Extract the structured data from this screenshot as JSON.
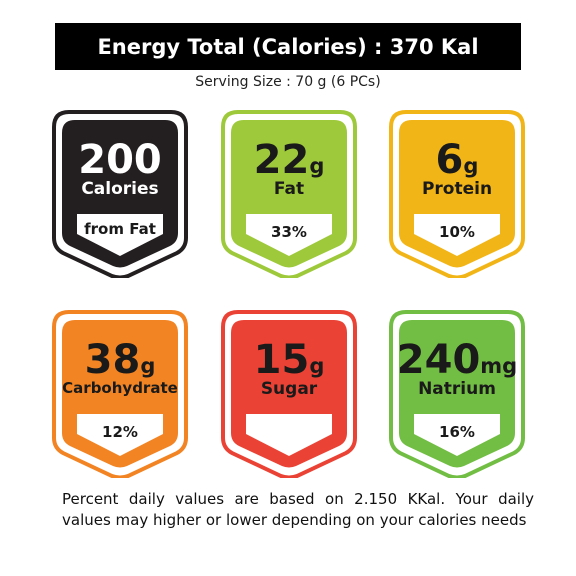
{
  "header": {
    "title": "Energy Total (Calories) : 370 Kal",
    "serving": "Serving Size : 70 g (6 PCs)"
  },
  "badges": [
    {
      "value": "200",
      "unit": "",
      "label": "Calories",
      "pct": "from Fat",
      "color": "#231f20",
      "text_color": "#ffffff"
    },
    {
      "value": "22",
      "unit": "g",
      "label": "Fat",
      "pct": "33%",
      "color": "#9dc93b",
      "text_color": "#1a1a1a"
    },
    {
      "value": "6",
      "unit": "g",
      "label": "Protein",
      "pct": "10%",
      "color": "#f2b518",
      "text_color": "#1a1a1a"
    },
    {
      "value": "38",
      "unit": "g",
      "label": "Carbohydrate",
      "pct": "12%",
      "color": "#f28424",
      "text_color": "#1a1a1a"
    },
    {
      "value": "15",
      "unit": "g",
      "label": "Sugar",
      "pct": "",
      "color": "#ea4335",
      "text_color": "#1a1a1a"
    },
    {
      "value": "240",
      "unit": "mg",
      "label": "Natrium",
      "pct": "16%",
      "color": "#72be44",
      "text_color": "#1a1a1a"
    }
  ],
  "footnote": "Percent daily values are based on 2.150 KKal. Your daily values may higher or lower depending on your calories needs"
}
